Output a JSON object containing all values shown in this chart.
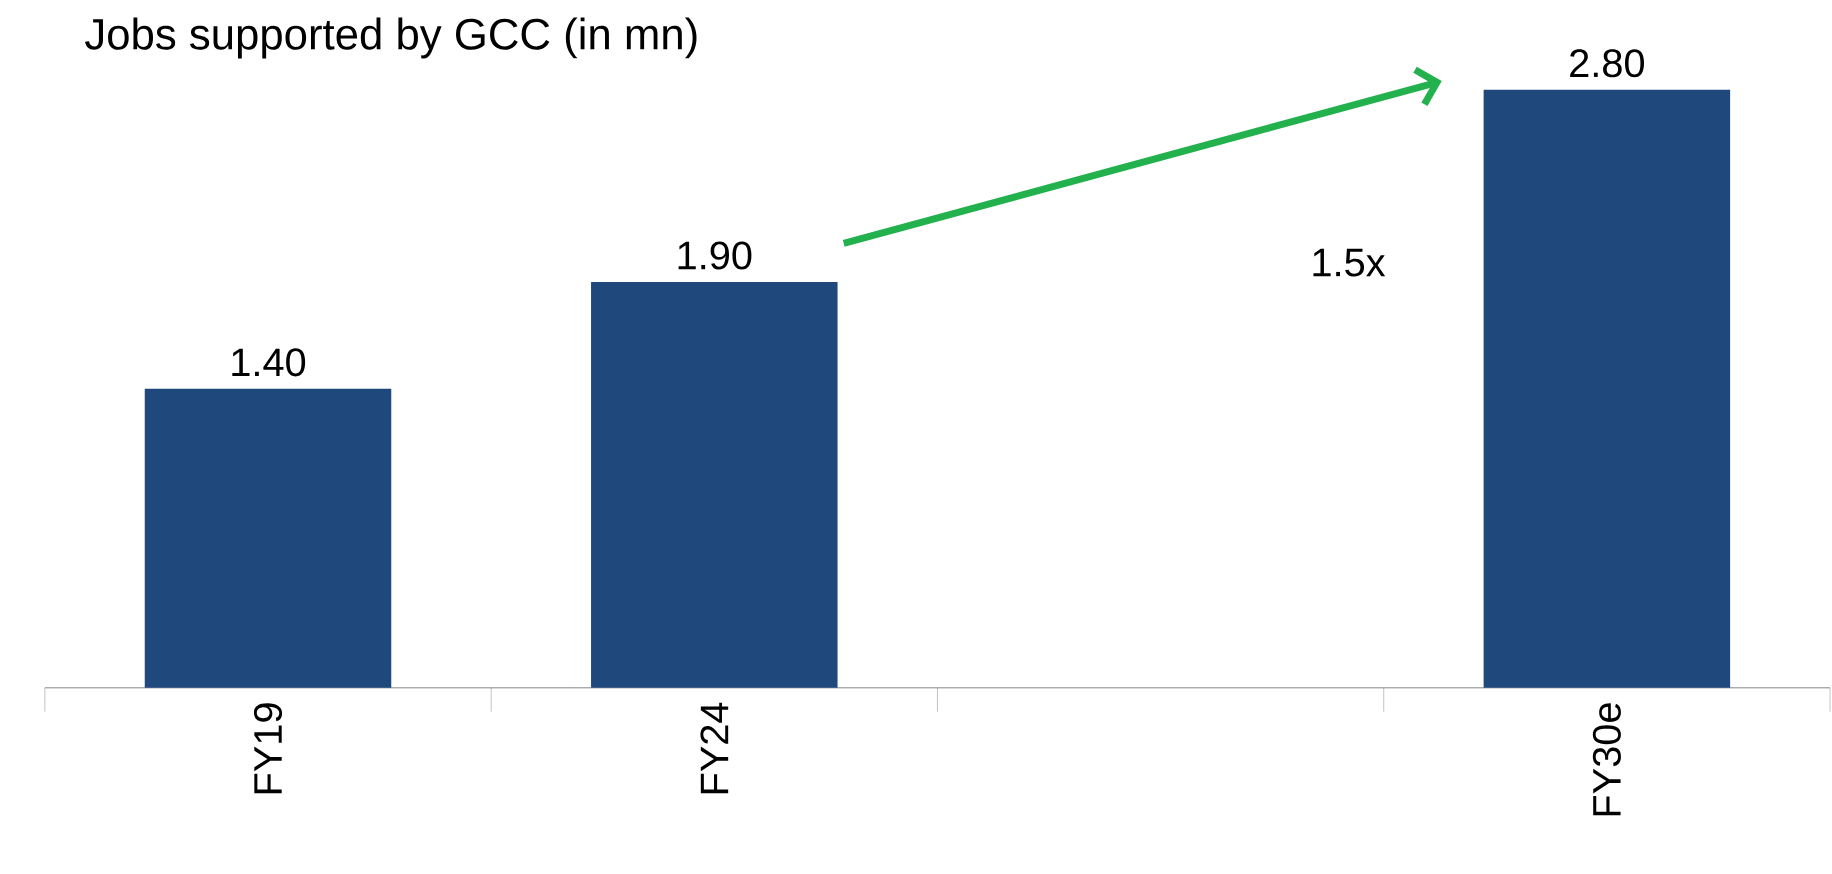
{
  "chart_data": {
    "type": "bar",
    "title": "Jobs supported by GCC (in mn)",
    "categories": [
      "FY19",
      "FY24",
      null,
      "FY30e"
    ],
    "values": [
      1.4,
      1.9,
      null,
      2.8
    ],
    "value_labels": [
      "1.40",
      "1.90",
      null,
      "2.80"
    ],
    "color": "#1f497d",
    "annotations": [
      "1.5x"
    ],
    "tick_labels": "x"
  }
}
